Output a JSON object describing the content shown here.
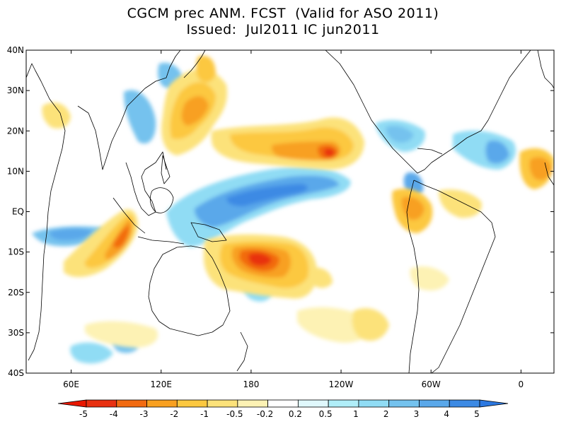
{
  "title": {
    "line1": "CGCM prec ANM. FCST  (Valid for ASO 2011)",
    "line2": "Issued:  Jul2011 IC jun2011"
  },
  "map": {
    "lat_labels": [
      "40N",
      "30N",
      "20N",
      "10N",
      "EQ",
      "10S",
      "20S",
      "30S",
      "40S"
    ],
    "lon_labels": [
      "60E",
      "120E",
      "180",
      "120W",
      "60W",
      "0"
    ],
    "lat_range": [
      -40,
      40
    ],
    "lon_range": [
      30,
      382
    ]
  },
  "colorbar": {
    "labels": [
      "-5",
      "-4",
      "-3",
      "-2",
      "-1",
      "-0.5",
      "-0.2",
      "0.2",
      "0.5",
      "1",
      "2",
      "3",
      "4",
      "5"
    ],
    "colors": [
      "#e83010",
      "#f26a10",
      "#f8a020",
      "#fcc840",
      "#fce27a",
      "#fdf2b4",
      "#ffffff",
      "#e0f8fc",
      "#b0eef8",
      "#90dcf4",
      "#74c2ee",
      "#5aa8ea",
      "#3c8ae4"
    ],
    "under_color": "#e81800",
    "over_color": "#2c78e0"
  },
  "anomaly_centers": [
    {
      "name": "central-pacific-wet-band",
      "lon": 200,
      "lat": 6,
      "value": 3
    },
    {
      "name": "maritime-continent-wet",
      "lon": 150,
      "lat": 0,
      "value": 2.5
    },
    {
      "name": "north-pacific-dry-band",
      "lon": 210,
      "lat": 15,
      "value": -3
    },
    {
      "name": "south-pacific-dry",
      "lon": 190,
      "lat": -11,
      "value": -4
    },
    {
      "name": "east-indian-ocean-dry",
      "lon": 95,
      "lat": -6,
      "value": -3
    },
    {
      "name": "western-north-pacific-dry",
      "lon": 140,
      "lat": 20,
      "value": -2.5
    },
    {
      "name": "caribbean-wet",
      "lon": 280,
      "lat": 15,
      "value": 2
    },
    {
      "name": "atlantic-wet",
      "lon": 330,
      "lat": 12,
      "value": 2
    }
  ]
}
